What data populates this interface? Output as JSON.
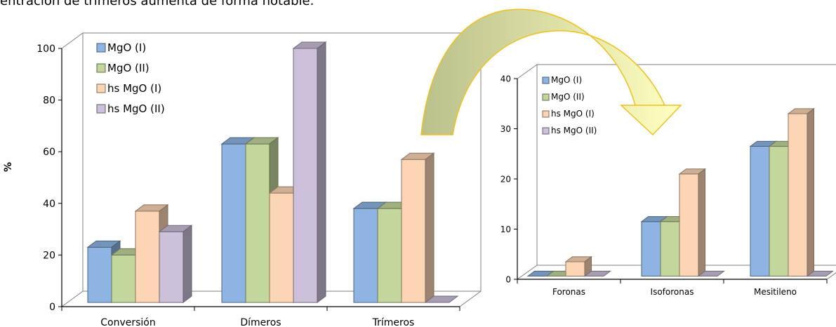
{
  "caption": "entración de trímeros aumenta de forma notable.",
  "colors": {
    "mgo1": "#8db4e2",
    "mgo2": "#c3d69b",
    "hsmgo1": "#fcd5b4",
    "hsmgo2": "#ccc0da",
    "arrow_start": "#b9c08a",
    "arrow_end": "#ffffc0",
    "arrow_stroke": "#f0c020"
  },
  "chart_data": [
    {
      "type": "bar",
      "style": "3d-clustered",
      "ylabel": "%",
      "ylim": [
        0,
        100
      ],
      "yticks": [
        "0",
        "20",
        "40",
        "60",
        "80",
        "100"
      ],
      "categories": [
        "Conversión",
        "Dímeros",
        "Trímeros"
      ],
      "series": [
        {
          "name": "MgO (I)",
          "color": "#8db4e2",
          "values": [
            23,
            63,
            38
          ]
        },
        {
          "name": "MgO (II)",
          "color": "#c3d69b",
          "values": [
            20,
            63,
            38
          ]
        },
        {
          "name": "hs MgO (I)",
          "color": "#fcd5b4",
          "values": [
            37,
            44,
            57
          ]
        },
        {
          "name": "hs MgO (II)",
          "color": "#ccc0da",
          "values": [
            29,
            100,
            0
          ]
        }
      ],
      "legend": "top-left",
      "grid": false
    },
    {
      "type": "bar",
      "style": "3d-clustered",
      "ylim": [
        0,
        40
      ],
      "yticks": [
        "0",
        "10",
        "20",
        "30",
        "40"
      ],
      "categories": [
        "Foronas",
        "Isoforonas",
        "Mesitileno"
      ],
      "series": [
        {
          "name": "MgO (I)",
          "color": "#8db4e2",
          "values": [
            0,
            11.5,
            26.5
          ]
        },
        {
          "name": "MgO (II)",
          "color": "#c3d69b",
          "values": [
            0,
            11.5,
            26.5
          ]
        },
        {
          "name": "hs MgO (I)",
          "color": "#fcd5b4",
          "values": [
            3.5,
            21,
            33
          ]
        },
        {
          "name": "hs MgO (II)",
          "color": "#ccc0da",
          "values": [
            0,
            0,
            0
          ]
        }
      ],
      "legend": "top-left",
      "grid": false
    }
  ]
}
